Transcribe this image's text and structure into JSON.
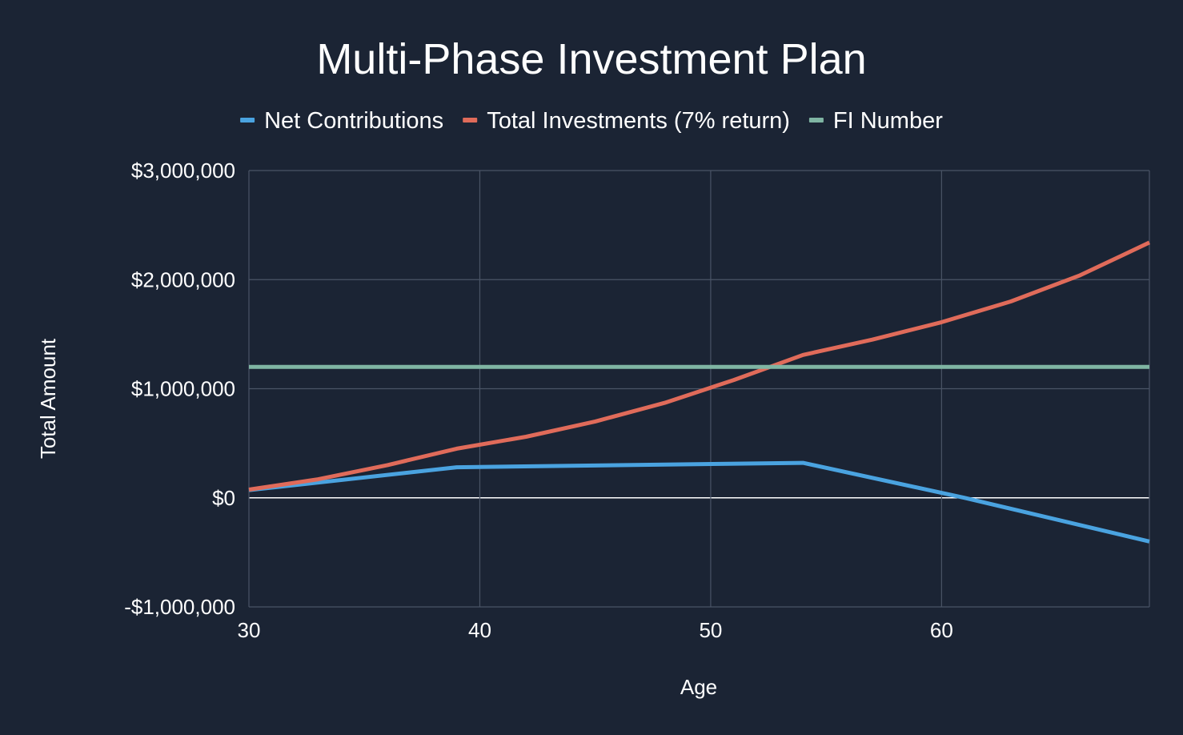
{
  "colors": {
    "background": "#1b2434",
    "grid": "#4a5466",
    "zero_line": "#ffffff",
    "text": "#ffffff"
  },
  "chart_data": {
    "type": "line",
    "title": "Multi-Phase Investment Plan",
    "xlabel": "Age",
    "ylabel": "Total Amount",
    "xlim": [
      30,
      69
    ],
    "ylim": [
      -1000000,
      3000000
    ],
    "x_ticks": [
      30,
      40,
      50,
      60
    ],
    "x_tick_labels": [
      "30",
      "40",
      "50",
      "60"
    ],
    "y_ticks": [
      -1000000,
      0,
      1000000,
      2000000,
      3000000
    ],
    "y_tick_labels": [
      "-$1,000,000",
      "$0",
      "$1,000,000",
      "$2,000,000",
      "$3,000,000"
    ],
    "grid": true,
    "legend_position": "top",
    "series": [
      {
        "name": "Net Contributions",
        "color": "#4aa3e0",
        "points": [
          [
            30,
            70000
          ],
          [
            39,
            280000
          ],
          [
            54,
            320000
          ],
          [
            61,
            0
          ],
          [
            69,
            -400000
          ]
        ]
      },
      {
        "name": "Total Investments (7% return)",
        "color": "#e06b5a",
        "points": [
          [
            30,
            75000
          ],
          [
            33,
            170000
          ],
          [
            36,
            300000
          ],
          [
            39,
            450000
          ],
          [
            42,
            560000
          ],
          [
            45,
            700000
          ],
          [
            48,
            870000
          ],
          [
            51,
            1080000
          ],
          [
            54,
            1310000
          ],
          [
            57,
            1450000
          ],
          [
            60,
            1610000
          ],
          [
            63,
            1800000
          ],
          [
            66,
            2040000
          ],
          [
            69,
            2340000
          ]
        ]
      },
      {
        "name": "FI Number",
        "color": "#7fb5a3",
        "points": [
          [
            30,
            1200000
          ],
          [
            69,
            1200000
          ]
        ]
      }
    ]
  }
}
